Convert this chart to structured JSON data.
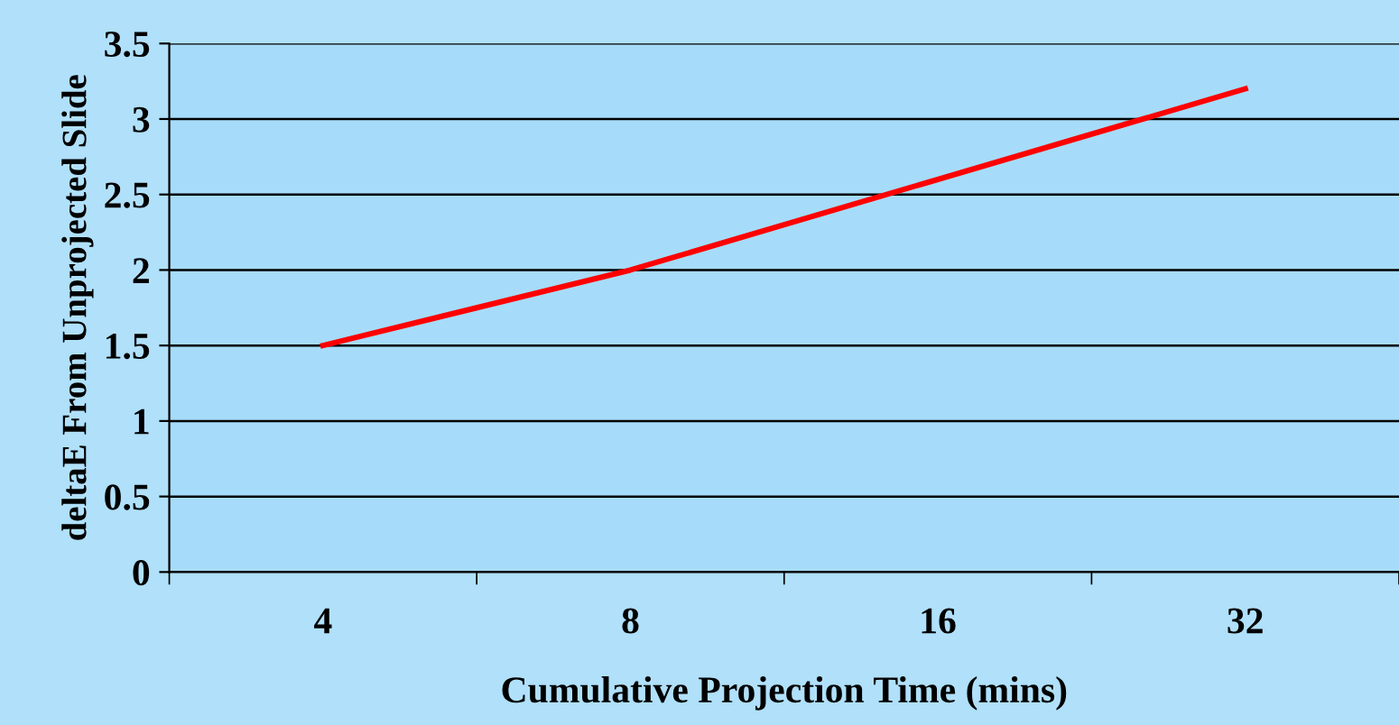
{
  "chart_data": {
    "type": "line",
    "xlabel": "Cumulative Projection Time (mins)",
    "ylabel": "deltaE From Unprojected Slide",
    "categories": [
      "4",
      "8",
      "16",
      "32"
    ],
    "series": [
      {
        "color": "#ff0000",
        "values": [
          1.5,
          2.0,
          2.6,
          3.2
        ]
      }
    ],
    "ylim": [
      0,
      3.5
    ],
    "yticks": [
      0,
      0.5,
      1,
      1.5,
      2,
      2.5,
      3,
      3.5
    ],
    "grid": "y",
    "marker": "none",
    "line_style": "solid"
  }
}
